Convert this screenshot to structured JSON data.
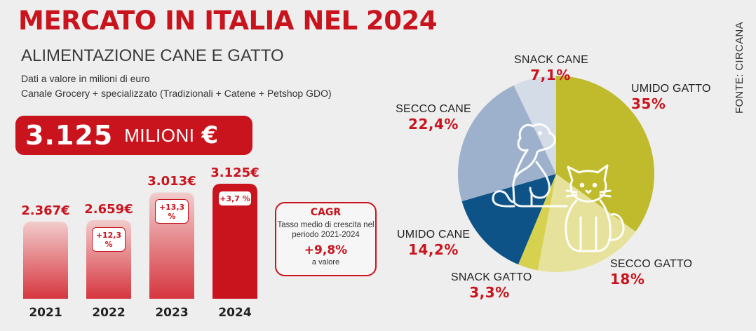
{
  "header": {
    "title": "MERCATO IN ITALIA NEL 2024",
    "subtitle": "ALIMENTAZIONE CANE E GATTO",
    "note_1": "Dati a valore in milioni di euro",
    "note_2": "Canale Grocery + specializzato (Tradizionali + Catene + Petshop GDO)"
  },
  "total": {
    "value": "3.125",
    "unit": "MILIONI",
    "currency": "€"
  },
  "source": "FONTE: CIRCANA",
  "colors": {
    "brand_red": "#c9141e",
    "bar_light_top": "#f1c9c9",
    "bar_light_bottom": "#d9434b",
    "umido_gatto": "#c0bb2c",
    "secco_gatto": "#e6e29c",
    "snack_gatto": "#d6d24f",
    "umido_cane": "#0e5388",
    "secco_cane": "#9eb1cc",
    "snack_cane": "#d4dce8"
  },
  "bar_chart": {
    "years": [
      {
        "year": "2021",
        "value_label": "2.367€",
        "growth": ""
      },
      {
        "year": "2022",
        "value_label": "2.659€",
        "growth": "+12,3 %"
      },
      {
        "year": "2023",
        "value_label": "3.013€",
        "growth": "+13,3 %"
      },
      {
        "year": "2024",
        "value_label": "3.125€",
        "growth": "+3,7 %"
      }
    ]
  },
  "cagr": {
    "title": "CAGR",
    "description": "Tasso medio di crescita nel periodo 2021-2024",
    "value": "+9,8%",
    "unit": "a valore"
  },
  "chart_data": [
    {
      "type": "bar",
      "title": "",
      "categories": [
        "2021",
        "2022",
        "2023",
        "2024"
      ],
      "values": [
        2367,
        2659,
        3013,
        3125
      ],
      "unit": "milioni di euro",
      "growth_pct": [
        null,
        12.3,
        13.3,
        3.7
      ],
      "xlabel": "",
      "ylabel": "",
      "grid": false
    },
    {
      "type": "pie",
      "title": "",
      "start_angle": "12 o'clock, clockwise",
      "slices": [
        {
          "label": "UMIDO GATTO",
          "value": 35,
          "value_label": "35%",
          "color_key": "umido_gatto"
        },
        {
          "label": "SECCO GATTO",
          "value": 18,
          "value_label": "18%",
          "color_key": "secco_gatto"
        },
        {
          "label": "SNACK GATTO",
          "value": 3.3,
          "value_label": "3,3%",
          "color_key": "snack_gatto"
        },
        {
          "label": "UMIDO CANE",
          "value": 14.2,
          "value_label": "14,2%",
          "color_key": "umido_cane"
        },
        {
          "label": "SECCO CANE",
          "value": 22.4,
          "value_label": "22,4%",
          "color_key": "secco_cane"
        },
        {
          "label": "SNACK CANE",
          "value": 7.1,
          "value_label": "7,1%",
          "color_key": "snack_cane"
        }
      ],
      "icons": [
        "cat-icon",
        "dog-icon"
      ]
    }
  ]
}
